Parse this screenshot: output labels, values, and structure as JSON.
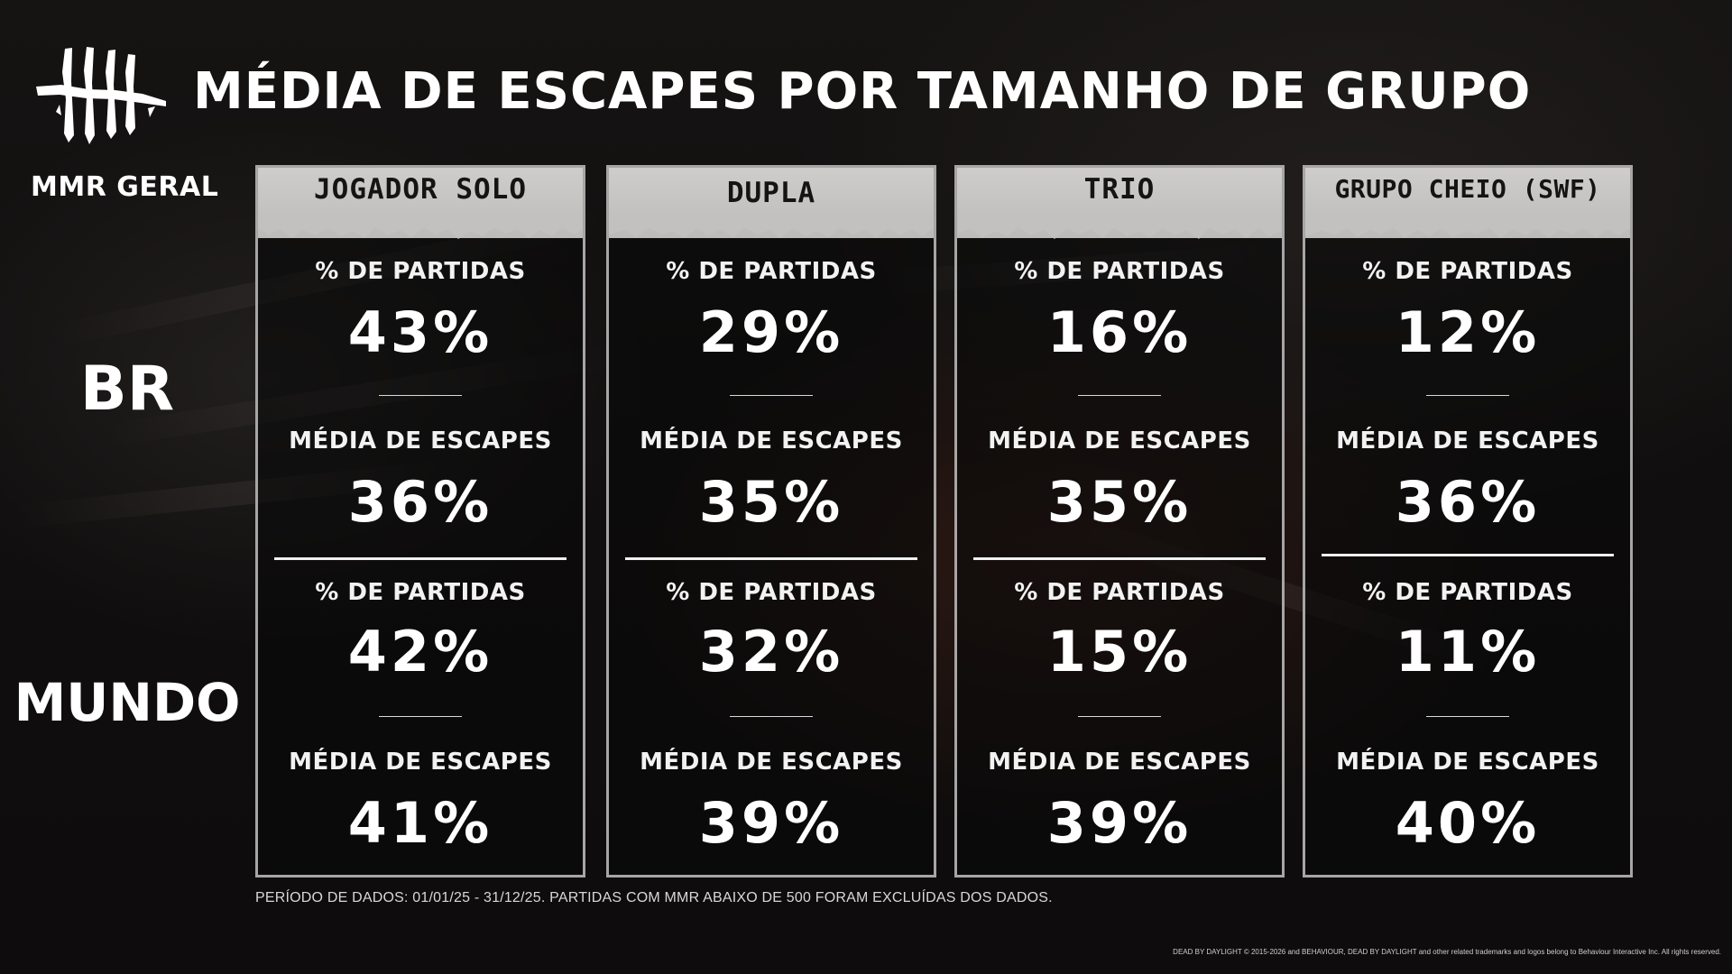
{
  "title": "MÉDIA DE ESCAPES POR TAMANHO DE GRUPO",
  "mmr_label": "MMR GERAL",
  "logo_icon": "dead-by-daylight-logo-icon",
  "regions": [
    "BR",
    "MUNDO"
  ],
  "colors": {
    "background": "#100e0e",
    "card_header": "#c8c6c4",
    "card_border": "#a7a5a5",
    "text": "#ffffff"
  },
  "groups": [
    {
      "name": "JOGADOR SOLO",
      "br": {
        "matches_label": "% DE PARTIDAS",
        "matches": "43%",
        "escapes_label": "MÉDIA DE ESCAPES",
        "escapes": "36%"
      },
      "world": {
        "matches_label": "% DE PARTIDAS",
        "matches": "42%",
        "escapes_label": "MÉDIA DE ESCAPES",
        "escapes": "41%"
      }
    },
    {
      "name": "DUPLA",
      "br": {
        "matches_label": "% DE PARTIDAS",
        "matches": "29%",
        "escapes_label": "MÉDIA DE ESCAPES",
        "escapes": "35%"
      },
      "world": {
        "matches_label": "% DE PARTIDAS",
        "matches": "32%",
        "escapes_label": "MÉDIA DE ESCAPES",
        "escapes": "39%"
      }
    },
    {
      "name": "TRIO",
      "br": {
        "matches_label": "% DE PARTIDAS",
        "matches": "16%",
        "escapes_label": "MÉDIA DE ESCAPES",
        "escapes": "35%"
      },
      "world": {
        "matches_label": "% DE PARTIDAS",
        "matches": "15%",
        "escapes_label": "MÉDIA DE ESCAPES",
        "escapes": "39%"
      }
    },
    {
      "name": "GRUPO CHEIO (SWF)",
      "br": {
        "matches_label": "% DE PARTIDAS",
        "matches": "12%",
        "escapes_label": "MÉDIA DE ESCAPES",
        "escapes": "36%"
      },
      "world": {
        "matches_label": "% DE PARTIDAS",
        "matches": "11%",
        "escapes_label": "MÉDIA DE ESCAPES",
        "escapes": "40%"
      }
    }
  ],
  "footnote": "PERÍODO DE DADOS: 01/01/25 - 31/12/25. PARTIDAS COM MMR ABAIXO DE 500 FORAM EXCLUÍDAS DOS DADOS.",
  "legal": "DEAD BY DAYLIGHT © 2015-2026 and BEHAVIOUR, DEAD BY DAYLIGHT and other related trademarks and logos belong to Behaviour Interactive Inc. All rights reserved."
}
